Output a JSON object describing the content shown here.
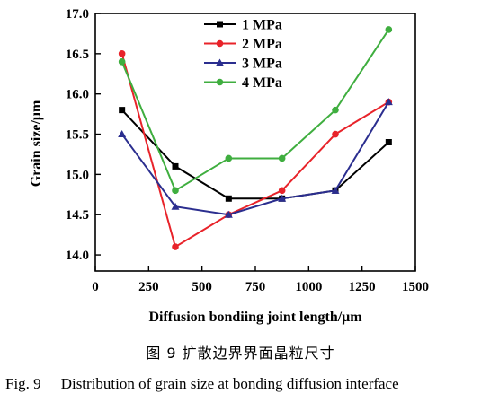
{
  "chart_data": {
    "type": "line",
    "xlabel": "Diffusion bondiing joint length/μm",
    "ylabel": "Grain size/μm",
    "xlim": [
      0,
      1500
    ],
    "ylim": [
      13.8,
      17.0
    ],
    "xticks": [
      0,
      250,
      500,
      750,
      1000,
      1250,
      1500
    ],
    "yticks": [
      14.0,
      14.5,
      15.0,
      15.5,
      16.0,
      16.5,
      17.0
    ],
    "xtick_labels": [
      "0",
      "250",
      "500",
      "750",
      "1000",
      "1250",
      "1500"
    ],
    "ytick_labels": [
      "14.0",
      "14.5",
      "15.0",
      "15.5",
      "16.0",
      "16.5",
      "17.0"
    ],
    "legend_position": "top-center",
    "grid": false,
    "x": [
      125,
      375,
      625,
      875,
      1125,
      1375
    ],
    "series": [
      {
        "name": "1 MPa",
        "color": "#000000",
        "marker": "square",
        "values": [
          15.8,
          15.1,
          14.7,
          14.7,
          14.8,
          15.4
        ]
      },
      {
        "name": "2 MPa",
        "color": "#e8232a",
        "marker": "circle",
        "values": [
          16.5,
          14.1,
          14.5,
          14.8,
          15.5,
          15.9
        ]
      },
      {
        "name": "3 MPa",
        "color": "#2b2e8f",
        "marker": "triangle",
        "values": [
          15.5,
          14.6,
          14.5,
          14.7,
          14.8,
          15.9
        ]
      },
      {
        "name": "4 MPa",
        "color": "#3fae3f",
        "marker": "circle",
        "values": [
          16.4,
          14.8,
          15.2,
          15.2,
          15.8,
          16.8
        ]
      }
    ]
  },
  "caption": {
    "cn": "图 9   扩散边界界面晶粒尺寸",
    "en_label": "Fig. 9",
    "en_text": "Distribution of grain size at bonding diffusion interface"
  }
}
